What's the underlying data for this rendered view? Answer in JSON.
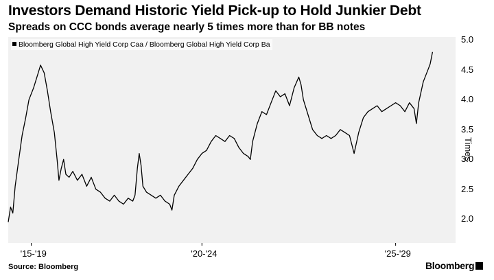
{
  "chart_data": {
    "type": "line",
    "title": "Investors Demand Historic Yield Pick-up to Hold Junkier Debt",
    "subtitle": "Spreads on CCC bonds average nearly 5 times more than for BB notes",
    "ylabel": "Times",
    "ylim": [
      1.6,
      5.05
    ],
    "yticks": [
      "5.0",
      "4.5",
      "4.0",
      "3.5",
      "3.0",
      "2.5",
      "2.0"
    ],
    "xlim": [
      2015.9,
      2025.6
    ],
    "xticks": [
      {
        "label": "'15-'19",
        "x": 2016.4
      },
      {
        "label": "'20-'24",
        "x": 2020.1
      },
      {
        "label": "'25-'29",
        "x": 2024.3
      }
    ],
    "legend": "top-left",
    "grid": false,
    "series": [
      {
        "name": "Bloomberg Global High Yield Corp Caa / Bloomberg Global High Yield Corp Ba",
        "color": "#000000",
        "points": [
          [
            2015.9,
            1.95
          ],
          [
            2015.95,
            2.2
          ],
          [
            2016.0,
            2.1
          ],
          [
            2016.05,
            2.55
          ],
          [
            2016.12,
            2.95
          ],
          [
            2016.2,
            3.4
          ],
          [
            2016.28,
            3.7
          ],
          [
            2016.35,
            4.0
          ],
          [
            2016.45,
            4.2
          ],
          [
            2016.55,
            4.45
          ],
          [
            2016.6,
            4.58
          ],
          [
            2016.68,
            4.45
          ],
          [
            2016.75,
            4.15
          ],
          [
            2016.82,
            3.8
          ],
          [
            2016.9,
            3.45
          ],
          [
            2016.96,
            3.0
          ],
          [
            2017.0,
            2.65
          ],
          [
            2017.05,
            2.85
          ],
          [
            2017.1,
            3.0
          ],
          [
            2017.15,
            2.75
          ],
          [
            2017.22,
            2.7
          ],
          [
            2017.3,
            2.8
          ],
          [
            2017.4,
            2.65
          ],
          [
            2017.5,
            2.75
          ],
          [
            2017.6,
            2.55
          ],
          [
            2017.7,
            2.7
          ],
          [
            2017.8,
            2.5
          ],
          [
            2017.9,
            2.45
          ],
          [
            2018.0,
            2.35
          ],
          [
            2018.1,
            2.3
          ],
          [
            2018.2,
            2.4
          ],
          [
            2018.3,
            2.3
          ],
          [
            2018.4,
            2.25
          ],
          [
            2018.5,
            2.35
          ],
          [
            2018.6,
            2.3
          ],
          [
            2018.65,
            2.4
          ],
          [
            2018.7,
            2.85
          ],
          [
            2018.74,
            3.1
          ],
          [
            2018.78,
            2.9
          ],
          [
            2018.82,
            2.55
          ],
          [
            2018.9,
            2.45
          ],
          [
            2019.0,
            2.4
          ],
          [
            2019.1,
            2.35
          ],
          [
            2019.2,
            2.4
          ],
          [
            2019.3,
            2.3
          ],
          [
            2019.4,
            2.25
          ],
          [
            2019.45,
            2.15
          ],
          [
            2019.5,
            2.4
          ],
          [
            2019.6,
            2.55
          ],
          [
            2019.7,
            2.65
          ],
          [
            2019.8,
            2.75
          ],
          [
            2019.9,
            2.85
          ],
          [
            2020.0,
            3.0
          ],
          [
            2020.1,
            3.1
          ],
          [
            2020.2,
            3.15
          ],
          [
            2020.3,
            3.3
          ],
          [
            2020.4,
            3.4
          ],
          [
            2020.5,
            3.35
          ],
          [
            2020.6,
            3.3
          ],
          [
            2020.7,
            3.4
          ],
          [
            2020.8,
            3.35
          ],
          [
            2020.9,
            3.2
          ],
          [
            2021.0,
            3.1
          ],
          [
            2021.1,
            3.05
          ],
          [
            2021.15,
            3.0
          ],
          [
            2021.2,
            3.3
          ],
          [
            2021.3,
            3.6
          ],
          [
            2021.4,
            3.8
          ],
          [
            2021.5,
            3.75
          ],
          [
            2021.6,
            3.95
          ],
          [
            2021.7,
            4.15
          ],
          [
            2021.8,
            4.05
          ],
          [
            2021.9,
            4.1
          ],
          [
            2022.0,
            3.9
          ],
          [
            2022.1,
            4.2
          ],
          [
            2022.2,
            4.38
          ],
          [
            2022.25,
            4.25
          ],
          [
            2022.3,
            4.0
          ],
          [
            2022.4,
            3.75
          ],
          [
            2022.5,
            3.5
          ],
          [
            2022.6,
            3.4
          ],
          [
            2022.7,
            3.35
          ],
          [
            2022.8,
            3.4
          ],
          [
            2022.9,
            3.35
          ],
          [
            2023.0,
            3.4
          ],
          [
            2023.1,
            3.5
          ],
          [
            2023.2,
            3.45
          ],
          [
            2023.3,
            3.4
          ],
          [
            2023.4,
            3.1
          ],
          [
            2023.5,
            3.45
          ],
          [
            2023.6,
            3.7
          ],
          [
            2023.7,
            3.8
          ],
          [
            2023.8,
            3.85
          ],
          [
            2023.9,
            3.9
          ],
          [
            2024.0,
            3.8
          ],
          [
            2024.1,
            3.85
          ],
          [
            2024.2,
            3.9
          ],
          [
            2024.3,
            3.95
          ],
          [
            2024.4,
            3.9
          ],
          [
            2024.5,
            3.8
          ],
          [
            2024.6,
            3.95
          ],
          [
            2024.7,
            3.85
          ],
          [
            2024.75,
            3.6
          ],
          [
            2024.8,
            3.95
          ],
          [
            2024.9,
            4.3
          ],
          [
            2025.0,
            4.5
          ],
          [
            2025.05,
            4.6
          ],
          [
            2025.1,
            4.8
          ]
        ]
      }
    ],
    "source": "Source: Bloomberg",
    "brand": "Bloomberg"
  }
}
